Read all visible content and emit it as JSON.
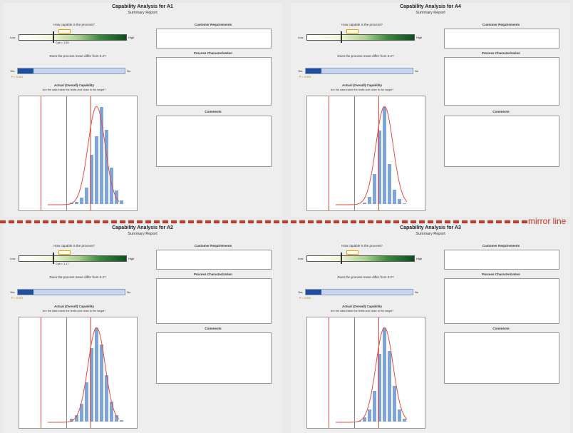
{
  "panels": [
    {
      "title": "Capability Analysis for A1",
      "subtitle": "Summary Report",
      "cpk_low": "Cpk = 1.59"
    },
    {
      "title": "Capability Analysis for A4",
      "subtitle": "Summary Report",
      "cpk_low": ""
    },
    {
      "title": "Capability Analysis for A2",
      "subtitle": "Summary Report",
      "cpk_low": "Cpk = 1.17"
    },
    {
      "title": "Capability Analysis for A3",
      "subtitle": "Summary Report",
      "cpk_low": ""
    }
  ],
  "common": {
    "q_capable": "How capable is the process?",
    "q_differ": "Does the process mean differ from 0.2?",
    "actual_cap": "Actual (Overall) Capability",
    "actual_sub": "Are the data inside the limits and close to the target?",
    "cust_req": "Customer Requirements",
    "proc_char": "Process Characterization",
    "comments": "Comments",
    "low": "Low",
    "high": "High",
    "yes": "Yes",
    "no": "No",
    "target": "Target",
    "pv": "P < 0.001"
  },
  "mirror_label": "mirror line",
  "colors": {
    "spec_line": "#e74c3c",
    "histogram": "#7fa5d7",
    "mean_bar": "#1f4e9c",
    "mirror": "#c0392b"
  }
}
